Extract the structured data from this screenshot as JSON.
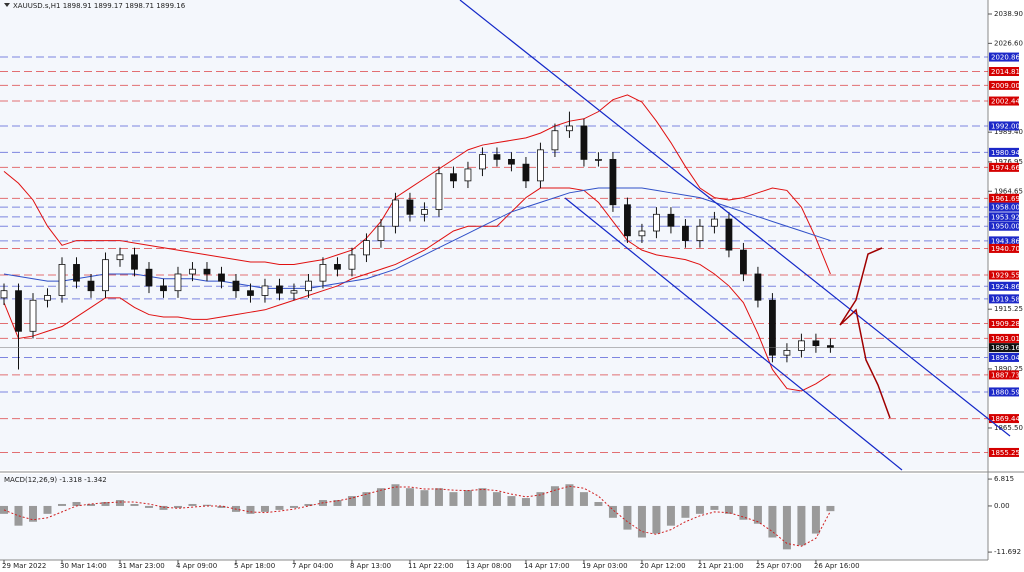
{
  "chart_data": {
    "type": "candlestick",
    "title": "XAUUSD.s,H1  1898.91 1899.17 1898.71 1899.16",
    "xlim": [
      0,
      67.8
    ],
    "xticks": [
      {
        "value": 0,
        "label": "29 Mar 2022"
      },
      {
        "value": 4,
        "label": "30 Mar 14:00"
      },
      {
        "value": 8,
        "label": "31 Mar 23:00"
      },
      {
        "value": 12,
        "label": "4 Apr 09:00"
      },
      {
        "value": 16,
        "label": "5 Apr 18:00"
      },
      {
        "value": 20,
        "label": "7 Apr 04:00"
      },
      {
        "value": 24,
        "label": "8 Apr 13:00"
      },
      {
        "value": 28,
        "label": "11 Apr 22:00"
      },
      {
        "value": 32,
        "label": "13 Apr 08:00"
      },
      {
        "value": 36,
        "label": "14 Apr 17:00"
      },
      {
        "value": 40,
        "label": "19 Apr 03:00"
      },
      {
        "value": 44,
        "label": "20 Apr 12:00"
      },
      {
        "value": 48,
        "label": "21 Apr 21:00"
      },
      {
        "value": 52,
        "label": "25 Apr 07:00"
      },
      {
        "value": 56,
        "label": "26 Apr 16:00"
      }
    ],
    "ylim": [
      1847.9,
      2044.76
    ],
    "yticks": [
      {
        "value": 2038.9,
        "label": "2038.90"
      },
      {
        "value": 2026.6,
        "label": "2026.60"
      },
      {
        "value": 1989.4,
        "label": "1989.40"
      },
      1976.95,
      {
        "value": 1964.65,
        "label": "1964.65"
      },
      1915.25,
      1890.25,
      {
        "value": 1865.5,
        "label": "1865.50"
      }
    ],
    "open": [
      1920,
      1923,
      1906,
      1919,
      1921,
      1934,
      1927,
      1923,
      1936,
      1938,
      1932,
      1925,
      1923,
      1930,
      1932,
      1930,
      1927,
      1923,
      1921,
      1925,
      1922,
      1923,
      1927,
      1934,
      1932,
      1938,
      1944,
      1950,
      1961,
      1955,
      1957,
      1972,
      1969,
      1974,
      1980,
      1978,
      1976,
      1969,
      1982,
      1990,
      1992,
      1978,
      1978,
      1959,
      1946,
      1948,
      1955,
      1950,
      1944,
      1950,
      1953,
      1940,
      1930,
      1919,
      1896,
      1898,
      1902,
      1900
    ],
    "high": [
      1926,
      1926,
      1922,
      1924,
      1937,
      1937,
      1930,
      1939,
      1941,
      1941,
      1935,
      1928,
      1933,
      1935,
      1935,
      1933,
      1930,
      1926,
      1928,
      1928,
      1926,
      1930,
      1937,
      1937,
      1941,
      1947,
      1953,
      1964,
      1964,
      1960,
      1975,
      1975,
      1977,
      1983,
      1983,
      1981,
      1979,
      1985,
      1993,
      1998,
      1995,
      1981,
      1981,
      1962,
      1951,
      1958,
      1958,
      1953,
      1953,
      1956,
      1956,
      1943,
      1933,
      1922,
      1901,
      1905,
      1905,
      1903
    ],
    "low": [
      1917,
      1890,
      1903,
      1916,
      1918,
      1924,
      1920,
      1920,
      1933,
      1929,
      1922,
      1920,
      1920,
      1927,
      1927,
      1924,
      1920,
      1918,
      1918,
      1919,
      1919,
      1920,
      1924,
      1929,
      1929,
      1935,
      1941,
      1947,
      1952,
      1952,
      1954,
      1966,
      1966,
      1971,
      1975,
      1973,
      1966,
      1966,
      1979,
      1987,
      1975,
      1975,
      1956,
      1943,
      1943,
      1945,
      1947,
      1941,
      1941,
      1947,
      1937,
      1927,
      1916,
      1893,
      1893,
      1895,
      1897,
      1897
    ],
    "close": [
      1923,
      1906,
      1919,
      1921,
      1934,
      1927,
      1923,
      1936,
      1938,
      1932,
      1925,
      1923,
      1930,
      1932,
      1930,
      1927,
      1923,
      1921,
      1925,
      1922,
      1923,
      1927,
      1934,
      1932,
      1938,
      1944,
      1950,
      1961,
      1955,
      1957,
      1972,
      1969,
      1974,
      1980,
      1978,
      1976,
      1969,
      1982,
      1990,
      1992,
      1978,
      1978,
      1959,
      1946,
      1948,
      1955,
      1950,
      1944,
      1950,
      1953,
      1940,
      1930,
      1919,
      1896,
      1898,
      1902,
      1900,
      1899.16
    ],
    "overlays": [
      {
        "color": "#e01010",
        "values": [
          1973,
          1968,
          1961,
          1950,
          1942,
          1944,
          1944,
          1944,
          1944,
          1943,
          1942,
          1941,
          1940,
          1939,
          1938,
          1937,
          1936,
          1935,
          1935,
          1934,
          1934,
          1935,
          1936,
          1938,
          1940,
          1945,
          1952,
          1962,
          1966,
          1970,
          1974,
          1978,
          1982,
          1984,
          1985,
          1986,
          1987,
          1989,
          1992,
          1994,
          1995,
          1998,
          2003,
          2005,
          2002,
          1994,
          1985,
          1975,
          1966,
          1962,
          1961,
          1962,
          1964,
          1966,
          1965,
          1958,
          1945,
          1930
        ]
      },
      {
        "color": "#e01010",
        "values": [
          1918,
          1903,
          1904,
          1906,
          1908,
          1912,
          1916,
          1920,
          1920,
          1916,
          1913,
          1912,
          1912,
          1911,
          1911,
          1912,
          1913,
          1914,
          1915,
          1917,
          1919,
          1921,
          1923,
          1925,
          1928,
          1930,
          1932,
          1934,
          1937,
          1940,
          1944,
          1948,
          1950,
          1950,
          1950,
          1956,
          1962,
          1966,
          1966,
          1966,
          1965,
          1960,
          1952,
          1944,
          1940,
          1938,
          1937,
          1936,
          1934,
          1930,
          1925,
          1918,
          1905,
          1890,
          1882,
          1881,
          1884,
          1888
        ]
      },
      {
        "color": "#3050c8",
        "values": [
          1930,
          1929,
          1928,
          1927,
          1927,
          1928,
          1929,
          1930,
          1930,
          1930,
          1929,
          1928,
          1928,
          1928,
          1927,
          1927,
          1926,
          1925,
          1924,
          1924,
          1924,
          1924,
          1925,
          1926,
          1927,
          1928,
          1930,
          1932,
          1935,
          1938,
          1941,
          1944,
          1947,
          1950,
          1953,
          1956,
          1958,
          1960,
          1962,
          1964,
          1965,
          1966,
          1966,
          1966,
          1966,
          1965,
          1964,
          1963,
          1962,
          1960,
          1958,
          1956,
          1954,
          1952,
          1950,
          1948,
          1946,
          1944
        ]
      }
    ],
    "levels": [
      {
        "value": 2020.86,
        "label": "2020.86",
        "color": "#1c28c8"
      },
      {
        "value": 2014.81,
        "label": "2014.81",
        "color": "#d40000"
      },
      {
        "value": 2009,
        "label": "2009.00",
        "color": "#d40000"
      },
      {
        "value": 2002.44,
        "label": "2002.44",
        "color": "#d40000"
      },
      {
        "value": 1992,
        "label": "1992.00",
        "color": "#1c28c8"
      },
      {
        "value": 1980.94,
        "label": "1980.94",
        "color": "#1c28c8"
      },
      {
        "value": 1974.66,
        "label": "1974.66",
        "color": "#d40000"
      },
      {
        "value": 1961.69,
        "label": "1961.69",
        "color": "#d40000"
      },
      {
        "value": 1958,
        "label": "1958.00",
        "color": "#1c28c8"
      },
      {
        "value": 1953.92,
        "label": "1953.92",
        "color": "#1c28c8"
      },
      {
        "value": 1950,
        "label": "1950.00",
        "color": "#1c28c8"
      },
      {
        "value": 1943.86,
        "label": "1943.86",
        "color": "#1c28c8"
      },
      {
        "value": 1940.7,
        "label": "1940.70",
        "color": "#d40000"
      },
      {
        "value": 1929.55,
        "label": "1929.55",
        "color": "#d40000"
      },
      {
        "value": 1924.86,
        "label": "1924.86",
        "color": "#1c28c8"
      },
      {
        "value": 1919.58,
        "label": "1919.58",
        "color": "#1c28c8"
      },
      {
        "value": 1909.28,
        "label": "1909.28",
        "color": "#d40000"
      },
      {
        "value": 1903.01,
        "label": "1903.01",
        "color": "#d40000"
      },
      {
        "value": 1895.04,
        "label": "1895.04",
        "color": "#1c28c8"
      },
      {
        "value": 1887.73,
        "label": "1887.73",
        "color": "#d40000"
      },
      {
        "value": 1880.59,
        "label": "1880.59",
        "color": "#1c28c8"
      },
      {
        "value": 1869.44,
        "label": "1869.44",
        "color": "#d40000"
      },
      {
        "value": 1855.25,
        "label": "1855.25",
        "color": "#d40000"
      }
    ],
    "last_price": 1899.16,
    "macd": {
      "title": "MACD(12,26,9) -1.318 -1.342",
      "ylim": [
        -13.7,
        8.1
      ],
      "yticks": [
        6.815,
        {
          "value": 0,
          "label": "0.00"
        },
        -11.692
      ],
      "histogram": [
        -2,
        -5,
        -4,
        -2,
        0.5,
        1,
        0.5,
        1,
        1.5,
        0.5,
        -0.5,
        -1,
        -0.5,
        0.5,
        0.3,
        -0.5,
        -1.5,
        -2,
        -1.5,
        -1,
        -0.5,
        0.5,
        1.5,
        1.5,
        2.5,
        3.5,
        4.5,
        5.5,
        4.5,
        4,
        4.5,
        3.5,
        4,
        4.5,
        3.5,
        2.5,
        2,
        3.5,
        5,
        5.5,
        3.5,
        1,
        -3,
        -6,
        -8,
        -7,
        -5,
        -3,
        -2,
        -1,
        -2,
        -3.5,
        -4.5,
        -8,
        -11,
        -10,
        -7,
        -1.318
      ],
      "signal": [
        -1,
        -2.5,
        -3.5,
        -3,
        -1.5,
        0,
        0.5,
        0.8,
        1,
        1,
        0.5,
        -0.3,
        -0.6,
        -0.3,
        0,
        0,
        -0.8,
        -1.5,
        -1.7,
        -1.3,
        -0.8,
        0,
        0.8,
        1.3,
        2,
        3,
        4,
        4.8,
        4.8,
        4.3,
        4.3,
        4,
        3.9,
        4.2,
        3.9,
        3,
        2.3,
        2.8,
        4,
        5,
        4.5,
        2.5,
        -1,
        -4,
        -6.5,
        -7.2,
        -6,
        -4,
        -2.5,
        -1.5,
        -1.7,
        -2.8,
        -4,
        -6.5,
        -9.5,
        -10.2,
        -8.2,
        -1.342
      ]
    }
  }
}
